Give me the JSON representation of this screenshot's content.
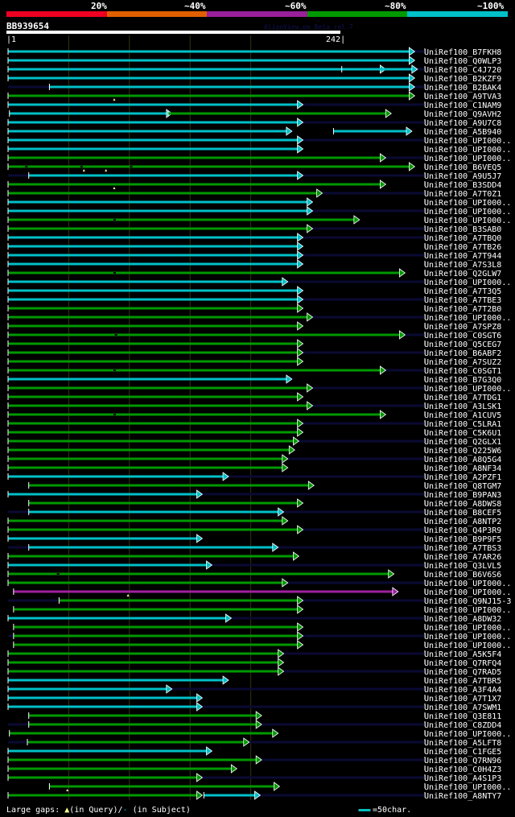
{
  "header": {
    "identity_labels": [
      "20%",
      "~40%",
      "~60%",
      "~80%",
      "~100%"
    ],
    "identity_colors": [
      "#ee0022",
      "#e06000",
      "#9a1f9a",
      "#009900",
      "#00c0c8"
    ],
    "query_name": "BB939654",
    "credit": "AlignView.pm Beta rel.7",
    "ruler_start": "1",
    "ruler_end": "242"
  },
  "footer": {
    "gaps_label": "Large gaps:",
    "gaps_query": "(in Query)/",
    "gaps_subject": "-",
    "gaps_subject_label": "(in Subject)",
    "scale_label": "=50char."
  },
  "chart_data": {
    "type": "alignment-overview",
    "query_length": 242,
    "grid_positions": [
      1,
      45,
      89,
      133,
      177,
      242
    ],
    "display_max": 300,
    "rows": [
      {
        "label": "UniRef100_B7FKH8",
        "segs": [
          [
            1,
            293,
            "cyan"
          ]
        ],
        "tail": true
      },
      {
        "label": "UniRef100_Q0WLP3",
        "segs": [
          [
            1,
            293,
            "cyan"
          ]
        ]
      },
      {
        "label": "UniRef100_C4J720",
        "segs": [
          [
            1,
            272,
            "cyan"
          ],
          [
            243,
            295,
            "cyan"
          ]
        ],
        "tail": true
      },
      {
        "label": "UniRef100_B2KZF9",
        "segs": [
          [
            1,
            293,
            "cyan"
          ]
        ]
      },
      {
        "label": "UniRef100_B2BAK4",
        "segs": [
          [
            31,
            293,
            "cyan"
          ]
        ],
        "lead": true,
        "tail": true
      },
      {
        "label": "UniRef100_A9TVA3",
        "segs": [
          [
            1,
            293,
            "green"
          ]
        ],
        "gapq": [
          78
        ]
      },
      {
        "label": "UniRef100_C1NAM9",
        "segs": [
          [
            1,
            212,
            "cyan"
          ]
        ],
        "tail": true
      },
      {
        "label": "UniRef100_Q9AVH2",
        "segs": [
          [
            2,
            117,
            "cyan"
          ],
          [
            117,
            276,
            "green"
          ]
        ]
      },
      {
        "label": "UniRef100_A9U7C8",
        "segs": [
          [
            1,
            212,
            "cyan"
          ]
        ],
        "tail": true
      },
      {
        "label": "UniRef100_A5B940",
        "segs": [
          [
            1,
            204,
            "cyan"
          ],
          [
            237,
            291,
            "cyan"
          ]
        ]
      },
      {
        "label": "UniRef100_UPI000..",
        "segs": [
          [
            1,
            212,
            "cyan"
          ]
        ],
        "tail": true
      },
      {
        "label": "UniRef100_UPI000..",
        "segs": [
          [
            1,
            212,
            "cyan"
          ]
        ]
      },
      {
        "label": "UniRef100_UPI000..",
        "segs": [
          [
            1,
            272,
            "green"
          ]
        ],
        "tail": true
      },
      {
        "label": "UniRef100_B6VEQ5",
        "segs": [
          [
            1,
            293,
            "green"
          ]
        ],
        "gapq": [
          56,
          72
        ],
        "gaps": [
          14,
          54,
          90
        ]
      },
      {
        "label": "UniRef100_A9U5J7",
        "segs": [
          [
            16,
            212,
            "cyan"
          ]
        ],
        "lead": true,
        "tail": true
      },
      {
        "label": "UniRef100_B3SDD4",
        "segs": [
          [
            1,
            272,
            "green"
          ]
        ],
        "gapq": [
          78
        ]
      },
      {
        "label": "UniRef100_A7T0Z1",
        "segs": [
          [
            1,
            226,
            "green"
          ]
        ],
        "tail": true
      },
      {
        "label": "UniRef100_UPI000..",
        "segs": [
          [
            1,
            219,
            "cyan"
          ]
        ]
      },
      {
        "label": "UniRef100_UPI000..",
        "segs": [
          [
            1,
            219,
            "cyan"
          ]
        ],
        "tail": true
      },
      {
        "label": "UniRef100_UPI000..",
        "segs": [
          [
            1,
            253,
            "green"
          ]
        ],
        "gaps": [
          78
        ]
      },
      {
        "label": "UniRef100_B3SAB0",
        "segs": [
          [
            1,
            219,
            "green"
          ]
        ],
        "tail": true
      },
      {
        "label": "UniRef100_A7TBQ0",
        "segs": [
          [
            1,
            212,
            "cyan"
          ]
        ],
        "tail": true
      },
      {
        "label": "UniRef100_A7TB26",
        "segs": [
          [
            1,
            212,
            "cyan"
          ]
        ]
      },
      {
        "label": "UniRef100_A7T944",
        "segs": [
          [
            1,
            212,
            "cyan"
          ]
        ],
        "tail": true
      },
      {
        "label": "UniRef100_A7S3L8",
        "segs": [
          [
            1,
            212,
            "cyan"
          ]
        ]
      },
      {
        "label": "UniRef100_Q2GLW7",
        "segs": [
          [
            1,
            286,
            "green"
          ]
        ],
        "gaps": [
          78
        ]
      },
      {
        "label": "UniRef100_UPI000..",
        "segs": [
          [
            1,
            201,
            "cyan"
          ]
        ],
        "tail": true
      },
      {
        "label": "UniRef100_A7T3Q5",
        "segs": [
          [
            1,
            212,
            "cyan"
          ]
        ]
      },
      {
        "label": "UniRef100_A7TBE3",
        "segs": [
          [
            1,
            212,
            "cyan"
          ]
        ],
        "tail": true
      },
      {
        "label": "UniRef100_A7T2B0",
        "segs": [
          [
            1,
            212,
            "green"
          ]
        ]
      },
      {
        "label": "UniRef100_UPI000..",
        "segs": [
          [
            1,
            219,
            "green"
          ]
        ],
        "tail": true
      },
      {
        "label": "UniRef100_A7SPZ8",
        "segs": [
          [
            1,
            212,
            "green"
          ]
        ]
      },
      {
        "label": "UniRef100_C0SGT6",
        "segs": [
          [
            1,
            286,
            "green"
          ]
        ],
        "gaps": [
          79
        ],
        "tail": true
      },
      {
        "label": "UniRef100_Q5CEG7",
        "segs": [
          [
            1,
            212,
            "green"
          ]
        ]
      },
      {
        "label": "UniRef100_B6ABF2",
        "segs": [
          [
            1,
            212,
            "green"
          ]
        ],
        "tail": true
      },
      {
        "label": "UniRef100_A7SUZ2",
        "segs": [
          [
            1,
            212,
            "green"
          ]
        ]
      },
      {
        "label": "UniRef100_C0SGT1",
        "segs": [
          [
            1,
            272,
            "green"
          ]
        ],
        "gaps": [
          78
        ],
        "tail": true
      },
      {
        "label": "UniRef100_B7G3Q0",
        "segs": [
          [
            1,
            204,
            "cyan"
          ]
        ]
      },
      {
        "label": "UniRef100_UPI000..",
        "segs": [
          [
            1,
            219,
            "green"
          ]
        ],
        "tail": true
      },
      {
        "label": "UniRef100_A7TDG1",
        "segs": [
          [
            1,
            212,
            "green"
          ]
        ]
      },
      {
        "label": "UniRef100_A3LSK1",
        "segs": [
          [
            1,
            219,
            "green"
          ]
        ],
        "tail": true
      },
      {
        "label": "UniRef100_A1CUV5",
        "segs": [
          [
            1,
            272,
            "green"
          ]
        ],
        "gaps": [
          78
        ]
      },
      {
        "label": "UniRef100_C5LRA1",
        "segs": [
          [
            1,
            212,
            "green"
          ]
        ],
        "tail": true
      },
      {
        "label": "UniRef100_C5K6U1",
        "segs": [
          [
            1,
            212,
            "green"
          ]
        ]
      },
      {
        "label": "UniRef100_Q2GLX1",
        "segs": [
          [
            1,
            209,
            "green"
          ]
        ],
        "tail": true
      },
      {
        "label": "UniRef100_Q225W6",
        "segs": [
          [
            1,
            206,
            "green"
          ]
        ]
      },
      {
        "label": "UniRef100_A8Q5G4",
        "segs": [
          [
            1,
            201,
            "green"
          ]
        ],
        "tail": true
      },
      {
        "label": "UniRef100_A8NF34",
        "segs": [
          [
            1,
            201,
            "green"
          ]
        ]
      },
      {
        "label": "UniRef100_A2PZF1",
        "segs": [
          [
            1,
            158,
            "cyan"
          ]
        ],
        "tail": true
      },
      {
        "label": "UniRef100_Q8TGM7",
        "segs": [
          [
            16,
            220,
            "green"
          ]
        ]
      },
      {
        "label": "UniRef100_B9PAN3",
        "segs": [
          [
            1,
            139,
            "cyan"
          ]
        ],
        "tail": true
      },
      {
        "label": "UniRef100_A8DWS8",
        "segs": [
          [
            16,
            212,
            "green"
          ]
        ]
      },
      {
        "label": "UniRef100_B8CEF5",
        "segs": [
          [
            16,
            198,
            "cyan"
          ]
        ],
        "lead": true,
        "tail": true
      },
      {
        "label": "UniRef100_A8NTP2",
        "segs": [
          [
            1,
            201,
            "green"
          ]
        ]
      },
      {
        "label": "UniRef100_Q4P3R9",
        "segs": [
          [
            1,
            212,
            "green"
          ]
        ],
        "tail": true
      },
      {
        "label": "UniRef100_B9P9F5",
        "segs": [
          [
            1,
            139,
            "cyan"
          ]
        ]
      },
      {
        "label": "UniRef100_A7TBS3",
        "segs": [
          [
            16,
            194,
            "cyan"
          ]
        ],
        "lead": true,
        "tail": true
      },
      {
        "label": "UniRef100_A7AR26",
        "segs": [
          [
            1,
            209,
            "green"
          ]
        ]
      },
      {
        "label": "UniRef100_Q3LVL5",
        "segs": [
          [
            1,
            146,
            "cyan"
          ]
        ],
        "tail": true
      },
      {
        "label": "UniRef100_B6V6S6",
        "segs": [
          [
            1,
            278,
            "green"
          ]
        ],
        "gaps": [
          37
        ]
      },
      {
        "label": "UniRef100_UPI000..",
        "segs": [
          [
            1,
            201,
            "green"
          ]
        ],
        "tail": true
      },
      {
        "label": "UniRef100_UPI000..",
        "segs": [
          [
            5,
            281,
            "magenta"
          ]
        ],
        "gapq": [
          88
        ]
      },
      {
        "label": "UniRef100_Q9NJ15-3",
        "segs": [
          [
            38,
            212,
            "green"
          ]
        ],
        "lead": true,
        "tail": true
      },
      {
        "label": "UniRef100_UPI000..",
        "segs": [
          [
            5,
            212,
            "green"
          ]
        ]
      },
      {
        "label": "UniRef100_A8DW32",
        "segs": [
          [
            1,
            160,
            "cyan"
          ]
        ],
        "tail": true
      },
      {
        "label": "UniRef100_UPI000..",
        "segs": [
          [
            5,
            212,
            "green"
          ]
        ]
      },
      {
        "label": "UniRef100_UPI000..",
        "segs": [
          [
            5,
            212,
            "green"
          ]
        ],
        "lead": true,
        "tail": true
      },
      {
        "label": "UniRef100_UPI000..",
        "segs": [
          [
            5,
            212,
            "green"
          ]
        ]
      },
      {
        "label": "UniRef100_A5K5F4",
        "segs": [
          [
            1,
            198,
            "green"
          ]
        ],
        "tail": true
      },
      {
        "label": "UniRef100_Q7RFQ4",
        "segs": [
          [
            1,
            198,
            "green"
          ]
        ]
      },
      {
        "label": "UniRef100_Q7RAD5",
        "segs": [
          [
            1,
            198,
            "green"
          ]
        ],
        "tail": true
      },
      {
        "label": "UniRef100_A7TBR5",
        "segs": [
          [
            1,
            158,
            "cyan"
          ]
        ]
      },
      {
        "label": "UniRef100_A3F4A4",
        "segs": [
          [
            1,
            117,
            "cyan"
          ]
        ],
        "tail": true
      },
      {
        "label": "UniRef100_A7T1X7",
        "segs": [
          [
            1,
            139,
            "cyan"
          ]
        ]
      },
      {
        "label": "UniRef100_A7SWM1",
        "segs": [
          [
            1,
            139,
            "cyan"
          ]
        ],
        "tail": true
      },
      {
        "label": "UniRef100_Q3E811",
        "segs": [
          [
            16,
            182,
            "green"
          ]
        ]
      },
      {
        "label": "UniRef100_C8ZDD4",
        "segs": [
          [
            16,
            182,
            "green"
          ]
        ],
        "lead": true,
        "tail": true
      },
      {
        "label": "UniRef100_UPI000..",
        "segs": [
          [
            2,
            194,
            "green"
          ]
        ]
      },
      {
        "label": "UniRef100_A5LFT8",
        "segs": [
          [
            15,
            173,
            "green"
          ]
        ],
        "lead": true,
        "tail": true
      },
      {
        "label": "UniRef100_C1FGE5",
        "segs": [
          [
            1,
            146,
            "cyan"
          ]
        ]
      },
      {
        "label": "UniRef100_Q7RN96",
        "segs": [
          [
            1,
            182,
            "green"
          ]
        ],
        "tail": true
      },
      {
        "label": "UniRef100_C0H4Z3",
        "segs": [
          [
            1,
            164,
            "green"
          ]
        ]
      },
      {
        "label": "UniRef100_A4S1P3",
        "segs": [
          [
            1,
            139,
            "green"
          ]
        ],
        "tail": true
      },
      {
        "label": "UniRef100_UPI000..",
        "segs": [
          [
            31,
            195,
            "green"
          ]
        ],
        "gapq": [
          44
        ]
      },
      {
        "label": "UniRef100_A8NTY7",
        "segs": [
          [
            1,
            139,
            "green"
          ],
          [
            143,
            181,
            "cyan"
          ]
        ],
        "tail": true
      }
    ]
  }
}
